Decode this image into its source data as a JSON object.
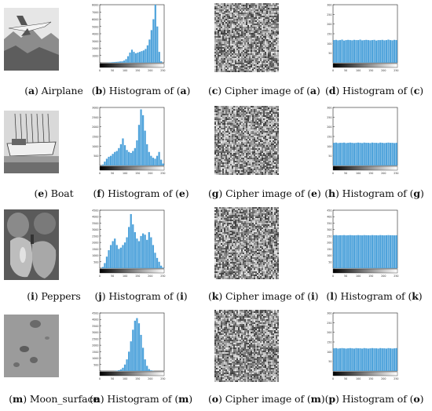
{
  "rows": [
    {
      "photo": {
        "letter": "a",
        "text": "Airplane"
      },
      "hist": {
        "letter": "b",
        "prefix": "Histogram of (",
        "ref": "a",
        "suffix": ")",
        "yticks": [
          "8000",
          "7000",
          "6000",
          "5000",
          "4000",
          "3000",
          "2000",
          "1000",
          ""
        ],
        "xticks": [
          "0",
          "50",
          "100",
          "150",
          "200",
          "250"
        ]
      },
      "cipher": {
        "letter": "c",
        "prefix": "Cipher image of (",
        "ref": "a",
        "suffix": ")"
      },
      "hist2": {
        "letter": "d",
        "prefix": "Histogram of (",
        "ref": "c",
        "suffix": ")",
        "yticks": [
          "300",
          "250",
          "200",
          "150",
          "100",
          "50",
          ""
        ],
        "xticks": [
          "0",
          "50",
          "100",
          "150",
          "200",
          "250"
        ]
      }
    },
    {
      "photo": {
        "letter": "e",
        "text": "Boat"
      },
      "hist": {
        "letter": "f",
        "prefix": "Histogram of (",
        "ref": "e",
        "suffix": ")",
        "yticks": [
          "3000",
          "2500",
          "2000",
          "1500",
          "1000",
          "500",
          ""
        ],
        "xticks": [
          "0",
          "50",
          "100",
          "150",
          "200",
          "250"
        ]
      },
      "cipher": {
        "letter": "g",
        "prefix": "Cipher image of (",
        "ref": "e",
        "suffix": ")"
      },
      "hist2": {
        "letter": "h",
        "prefix": "Histogram of (",
        "ref": "g",
        "suffix": ")",
        "yticks": [
          "300",
          "250",
          "200",
          "150",
          "100",
          "50",
          ""
        ],
        "xticks": [
          "0",
          "50",
          "100",
          "150",
          "200",
          "250"
        ]
      }
    },
    {
      "photo": {
        "letter": "i",
        "text": "Peppers"
      },
      "hist": {
        "letter": "j",
        "prefix": "Histogram of (",
        "ref": "i",
        "suffix": ")",
        "yticks": [
          "4500",
          "4000",
          "3500",
          "3000",
          "2500",
          "2000",
          "1500",
          "1000",
          "500",
          ""
        ],
        "xticks": [
          "0",
          "50",
          "100",
          "150",
          "200",
          "250"
        ]
      },
      "cipher": {
        "letter": "k",
        "prefix": "Cipher image of (",
        "ref": "i",
        "suffix": ")"
      },
      "hist2": {
        "letter": "l",
        "prefix": "Histogram of (",
        "ref": "k",
        "suffix": ")",
        "yticks": [
          "450",
          "400",
          "350",
          "300",
          "250",
          "200",
          "150",
          "100",
          "50",
          ""
        ],
        "xticks": [
          "0",
          "50",
          "100",
          "150",
          "200",
          "250"
        ]
      }
    },
    {
      "photo": {
        "letter": "m",
        "text": "Moon_surface"
      },
      "hist": {
        "letter": "n",
        "prefix": "Histogram of (",
        "ref": "m",
        "suffix": ")",
        "yticks": [
          "4500",
          "4000",
          "3500",
          "3000",
          "2500",
          "2000",
          "1500",
          "1000",
          "500",
          ""
        ],
        "xticks": [
          "0",
          "50",
          "100",
          "150",
          "200",
          "250"
        ]
      },
      "cipher": {
        "letter": "o",
        "prefix": "Cipher image of (",
        "ref": "m",
        "suffix": ")"
      },
      "hist2": {
        "letter": "p",
        "prefix": "Histogram of (",
        "ref": "o",
        "suffix": ")",
        "yticks": [
          "300",
          "250",
          "200",
          "150",
          "100",
          "50",
          ""
        ],
        "xticks": [
          "0",
          "50",
          "100",
          "150",
          "200",
          "250"
        ]
      }
    }
  ],
  "colors": {
    "bar": "#4fa3db",
    "axis": "#222222"
  },
  "chart_data": [
    {
      "type": "bar",
      "title": "",
      "xlabel": "",
      "ylabel": "",
      "xlim": [
        0,
        255
      ],
      "ylim": [
        0,
        8000
      ],
      "series": [
        {
          "values": [
            0,
            0,
            0,
            10,
            30,
            60,
            80,
            100,
            120,
            150,
            180,
            200,
            300,
            500,
            900,
            1400,
            1800,
            1500,
            1300,
            1400,
            1500,
            1600,
            1700,
            1900,
            2400,
            3200,
            4500,
            6000,
            8000,
            5000,
            1500,
            200,
            0
          ]
        }
      ]
    },
    {
      "type": "bar",
      "title": "",
      "xlabel": "",
      "ylabel": "",
      "xlim": [
        0,
        255
      ],
      "ylim": [
        0,
        256
      ],
      "series": [
        {
          "values": [
            100,
            101,
            99,
            100,
            102,
            98,
            100,
            101,
            100,
            99,
            101,
            100,
            100,
            102,
            99,
            100,
            101,
            100,
            99,
            100,
            101,
            98,
            100,
            100,
            101,
            99,
            100,
            102,
            100,
            99,
            101,
            100
          ]
        }
      ]
    },
    {
      "type": "bar",
      "title": "",
      "xlabel": "",
      "ylabel": "",
      "xlim": [
        0,
        255
      ],
      "ylim": [
        0,
        3000
      ],
      "series": [
        {
          "values": [
            0,
            50,
            200,
            350,
            450,
            500,
            600,
            700,
            750,
            900,
            1100,
            1400,
            1050,
            800,
            700,
            650,
            750,
            900,
            1300,
            2100,
            2900,
            2600,
            1800,
            1100,
            700,
            500,
            400,
            350,
            500,
            700,
            300,
            100
          ]
        }
      ]
    },
    {
      "type": "bar",
      "title": "",
      "xlabel": "",
      "ylabel": "",
      "xlim": [
        0,
        255
      ],
      "ylim": [
        0,
        256
      ],
      "series": [
        {
          "values": [
            100,
            101,
            99,
            100,
            100,
            101,
            99,
            100,
            101,
            100,
            99,
            100,
            101,
            100,
            99,
            101,
            100,
            100,
            99,
            101,
            100,
            100,
            99,
            101,
            100,
            99,
            100,
            101,
            100,
            100,
            99,
            100
          ]
        }
      ]
    },
    {
      "type": "bar",
      "title": "",
      "xlabel": "",
      "ylabel": "",
      "xlim": [
        0,
        255
      ],
      "ylim": [
        0,
        4500
      ],
      "series": [
        {
          "values": [
            0,
            100,
            400,
            900,
            1400,
            1800,
            2100,
            2300,
            1800,
            1500,
            1600,
            1800,
            2000,
            2400,
            3200,
            4200,
            3400,
            2800,
            2300,
            2100,
            2500,
            2700,
            2600,
            2200,
            2800,
            2400,
            1800,
            1200,
            800,
            500,
            200,
            50
          ]
        }
      ]
    },
    {
      "type": "bar",
      "title": "",
      "xlabel": "",
      "ylabel": "",
      "xlim": [
        0,
        255
      ],
      "ylim": [
        0,
        450
      ],
      "series": [
        {
          "values": [
            256,
            257,
            255,
            256,
            256,
            257,
            255,
            256,
            257,
            256,
            255,
            256,
            257,
            256,
            255,
            257,
            256,
            256,
            255,
            257,
            256,
            256,
            255,
            257,
            256,
            255,
            256,
            257,
            256,
            256,
            255,
            256
          ]
        }
      ]
    },
    {
      "type": "bar",
      "title": "",
      "xlabel": "",
      "ylabel": "",
      "xlim": [
        0,
        255
      ],
      "ylim": [
        0,
        4500
      ],
      "series": [
        {
          "values": [
            0,
            0,
            0,
            0,
            0,
            0,
            0,
            10,
            30,
            60,
            120,
            250,
            500,
            900,
            1500,
            2300,
            3200,
            3900,
            4100,
            3700,
            2800,
            1800,
            900,
            400,
            150,
            50,
            20,
            0,
            0,
            0,
            0,
            0
          ]
        }
      ]
    },
    {
      "type": "bar",
      "title": "",
      "xlabel": "",
      "ylabel": "",
      "xlim": [
        0,
        255
      ],
      "ylim": [
        0,
        256
      ],
      "series": [
        {
          "values": [
            100,
            101,
            99,
            100,
            101,
            100,
            99,
            100,
            101,
            100,
            99,
            101,
            100,
            100,
            99,
            101,
            100,
            99,
            100,
            101,
            100,
            100,
            99,
            101,
            100,
            100,
            99,
            101,
            100,
            99,
            100,
            101
          ]
        }
      ]
    }
  ]
}
